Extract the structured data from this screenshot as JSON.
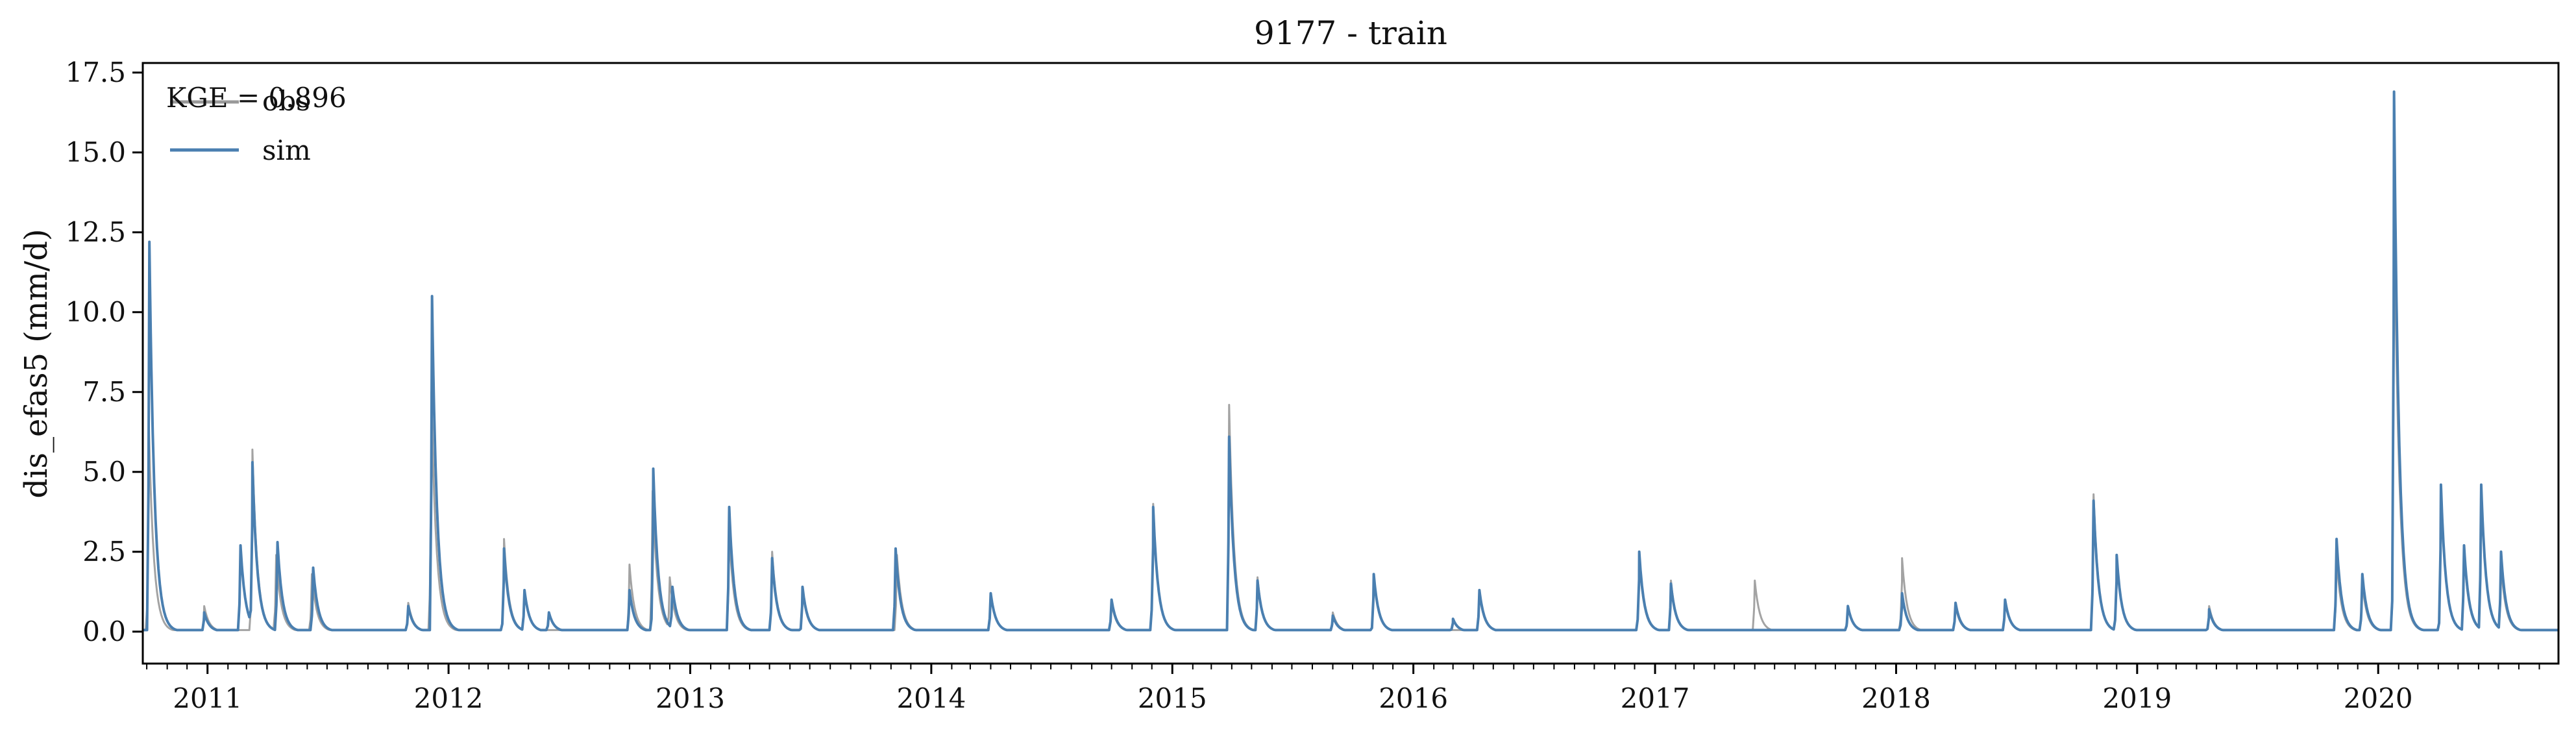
{
  "chart_data": {
    "type": "line",
    "title": "9177 - train",
    "xlabel": "",
    "ylabel": "dis_efas5 (mm/d)",
    "annotation": "KGE = 0.896",
    "legend_placement": "top-left",
    "grid": false,
    "xlim": [
      "2010-09-25",
      "2020-09-30"
    ],
    "ylim": [
      -1.0,
      17.8
    ],
    "x_ticks": [
      "2011",
      "2012",
      "2013",
      "2014",
      "2015",
      "2016",
      "2017",
      "2018",
      "2019",
      "2020"
    ],
    "y_ticks": [
      "0.0",
      "2.5",
      "5.0",
      "7.5",
      "10.0",
      "12.5",
      "15.0",
      "17.5"
    ],
    "x_tick_values": [
      "2011-01-01",
      "2012-01-01",
      "2013-01-01",
      "2014-01-01",
      "2015-01-01",
      "2016-01-01",
      "2017-01-01",
      "2018-01-01",
      "2019-01-01",
      "2020-01-01"
    ],
    "y_tick_values": [
      0,
      2.5,
      5,
      7.5,
      10,
      12.5,
      15,
      17.5
    ],
    "baseline": 0.05,
    "series": [
      {
        "name": "obs",
        "color": "#999999",
        "events": [
          [
            "2010-10-04",
            6.6
          ],
          [
            "2010-12-27",
            0.8
          ],
          [
            "2011-03-10",
            5.7
          ],
          [
            "2011-04-15",
            2.4
          ],
          [
            "2011-06-08",
            1.8
          ],
          [
            "2011-11-01",
            0.9
          ],
          [
            "2011-12-06",
            7.5
          ],
          [
            "2012-03-25",
            2.9
          ],
          [
            "2012-04-25",
            1.3
          ],
          [
            "2012-10-01",
            2.1
          ],
          [
            "2012-11-05",
            4.4
          ],
          [
            "2012-12-01",
            1.7
          ],
          [
            "2013-03-01",
            3.1
          ],
          [
            "2013-05-05",
            2.5
          ],
          [
            "2013-06-20",
            1.3
          ],
          [
            "2013-11-10",
            2.4
          ],
          [
            "2014-04-01",
            1.2
          ],
          [
            "2014-10-01",
            0.9
          ],
          [
            "2014-12-03",
            4.0
          ],
          [
            "2015-03-28",
            7.1
          ],
          [
            "2015-05-10",
            1.7
          ],
          [
            "2015-09-01",
            0.6
          ],
          [
            "2015-11-02",
            1.7
          ],
          [
            "2016-04-10",
            1.2
          ],
          [
            "2016-12-08",
            2.3
          ],
          [
            "2017-01-25",
            1.6
          ],
          [
            "2017-06-01",
            1.6
          ],
          [
            "2017-10-20",
            0.8
          ],
          [
            "2018-01-10",
            2.3
          ],
          [
            "2018-04-01",
            0.8
          ],
          [
            "2018-06-15",
            1.0
          ],
          [
            "2018-10-27",
            4.3
          ],
          [
            "2018-12-01",
            2.4
          ],
          [
            "2019-04-20",
            0.8
          ],
          [
            "2019-10-30",
            2.3
          ],
          [
            "2019-12-08",
            1.5
          ],
          [
            "2020-01-25",
            14.0
          ],
          [
            "2020-04-05",
            4.5
          ],
          [
            "2020-05-10",
            2.5
          ],
          [
            "2020-06-05",
            4.6
          ],
          [
            "2020-07-05",
            2.1
          ]
        ]
      },
      {
        "name": "sim",
        "color": "#4a7fb0",
        "events": [
          [
            "2010-10-05",
            12.2
          ],
          [
            "2010-12-27",
            0.6
          ],
          [
            "2011-02-20",
            2.7
          ],
          [
            "2011-03-10",
            5.3
          ],
          [
            "2011-04-17",
            2.8
          ],
          [
            "2011-06-10",
            2.0
          ],
          [
            "2011-11-01",
            0.8
          ],
          [
            "2011-12-07",
            10.5
          ],
          [
            "2012-03-25",
            2.6
          ],
          [
            "2012-04-25",
            1.3
          ],
          [
            "2012-06-01",
            0.6
          ],
          [
            "2012-10-01",
            1.3
          ],
          [
            "2012-11-06",
            5.1
          ],
          [
            "2012-12-05",
            1.4
          ],
          [
            "2013-03-01",
            3.9
          ],
          [
            "2013-05-05",
            2.3
          ],
          [
            "2013-06-20",
            1.4
          ],
          [
            "2013-11-08",
            2.6
          ],
          [
            "2014-04-01",
            1.2
          ],
          [
            "2014-10-01",
            1.0
          ],
          [
            "2014-12-03",
            3.9
          ],
          [
            "2015-03-28",
            6.1
          ],
          [
            "2015-05-10",
            1.6
          ],
          [
            "2015-09-01",
            0.5
          ],
          [
            "2015-11-02",
            1.8
          ],
          [
            "2016-03-01",
            0.4
          ],
          [
            "2016-04-10",
            1.3
          ],
          [
            "2016-12-08",
            2.5
          ],
          [
            "2017-01-25",
            1.5
          ],
          [
            "2017-10-20",
            0.8
          ],
          [
            "2018-01-10",
            1.2
          ],
          [
            "2018-04-01",
            0.9
          ],
          [
            "2018-06-15",
            1.0
          ],
          [
            "2018-10-27",
            4.1
          ],
          [
            "2018-12-01",
            2.4
          ],
          [
            "2019-04-20",
            0.7
          ],
          [
            "2019-10-30",
            2.9
          ],
          [
            "2019-12-08",
            1.8
          ],
          [
            "2020-01-25",
            16.9
          ],
          [
            "2020-04-05",
            4.6
          ],
          [
            "2020-05-10",
            2.7
          ],
          [
            "2020-06-05",
            4.6
          ],
          [
            "2020-07-05",
            2.5
          ]
        ]
      }
    ]
  }
}
